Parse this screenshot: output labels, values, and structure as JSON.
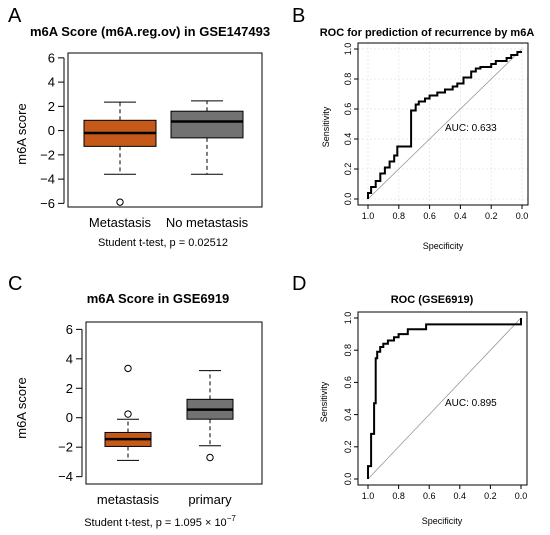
{
  "panels": {
    "A": {
      "letter": "A",
      "title": "m6A Score (m6A.reg.ov) in GSE147493",
      "ylabel": "m6A score",
      "note": "Student t-test, p = 0.02512"
    },
    "B": {
      "letter": "B",
      "title": "ROC for prediction of recurrence by m6A",
      "xlabel": "Specificity",
      "ylabel": "Sensitivity",
      "auc_text": "AUC: 0.633"
    },
    "C": {
      "letter": "C",
      "title": "m6A Score in GSE6919",
      "ylabel": "m6A score",
      "note_prefix": "Student t-test, p = 1.095 × 10",
      "note_exp": "−7"
    },
    "D": {
      "letter": "D",
      "title": "ROC (GSE6919)",
      "xlabel": "Specificity",
      "ylabel": "Sensitivity",
      "auc_text": "AUC: 0.895"
    }
  },
  "chart_data": [
    {
      "type": "box",
      "panel": "A",
      "title": "m6A Score (m6A.reg.ov) in GSE147493",
      "ylabel": "m6A score",
      "ylim": [
        -6.3,
        6.4
      ],
      "yticks": [
        -6,
        -4,
        -2,
        0,
        2,
        4,
        6
      ],
      "categories": [
        "Metastasis",
        "No metastasis"
      ],
      "boxes": [
        {
          "name": "Metastasis",
          "whisker_low": -3.6,
          "q1": -1.3,
          "median": -0.2,
          "q3": 0.85,
          "whisker_high": 2.35,
          "outliers": [
            -5.9
          ],
          "color": "#c4591a"
        },
        {
          "name": "No metastasis",
          "whisker_low": -3.6,
          "q1": -0.6,
          "median": 0.75,
          "q3": 1.6,
          "whisker_high": 2.45,
          "outliers": [],
          "color": "#727272"
        }
      ]
    },
    {
      "type": "line",
      "subtype": "roc",
      "panel": "B",
      "title": "ROC for prediction of recurrence by m6A",
      "xlabel": "Specificity",
      "ylabel": "Sensitivity",
      "xlim": [
        1.0,
        0.0
      ],
      "ylim": [
        0.0,
        1.0
      ],
      "xticks": [
        1.0,
        0.8,
        0.6,
        0.4,
        0.2,
        0.0
      ],
      "yticks": [
        0.0,
        0.2,
        0.4,
        0.6,
        0.8,
        1.0
      ],
      "grid": true,
      "annotation": "AUC: 0.633",
      "x": [
        1.0,
        1.0,
        0.98,
        0.98,
        0.95,
        0.95,
        0.92,
        0.92,
        0.89,
        0.89,
        0.86,
        0.86,
        0.83,
        0.83,
        0.81,
        0.81,
        0.72,
        0.72,
        0.69,
        0.69,
        0.67,
        0.67,
        0.63,
        0.63,
        0.6,
        0.6,
        0.55,
        0.55,
        0.5,
        0.5,
        0.45,
        0.45,
        0.42,
        0.42,
        0.38,
        0.38,
        0.33,
        0.33,
        0.3,
        0.3,
        0.27,
        0.27,
        0.2,
        0.2,
        0.17,
        0.17,
        0.1,
        0.1,
        0.07,
        0.07,
        0.03,
        0.03,
        0.0
      ],
      "y": [
        0.0,
        0.04,
        0.04,
        0.08,
        0.08,
        0.12,
        0.12,
        0.17,
        0.17,
        0.21,
        0.21,
        0.25,
        0.25,
        0.29,
        0.29,
        0.35,
        0.35,
        0.59,
        0.59,
        0.63,
        0.63,
        0.65,
        0.65,
        0.67,
        0.67,
        0.69,
        0.69,
        0.71,
        0.71,
        0.73,
        0.73,
        0.75,
        0.75,
        0.77,
        0.77,
        0.81,
        0.81,
        0.85,
        0.85,
        0.87,
        0.87,
        0.88,
        0.88,
        0.9,
        0.9,
        0.92,
        0.92,
        0.94,
        0.94,
        0.96,
        0.96,
        0.98,
        0.98
      ]
    },
    {
      "type": "box",
      "panel": "C",
      "title": "m6A Score in GSE6919",
      "ylabel": "m6A score",
      "ylim": [
        -4.5,
        6.5
      ],
      "yticks": [
        -4,
        -2,
        0,
        2,
        4,
        6
      ],
      "categories": [
        "metastasis",
        "primary"
      ],
      "boxes": [
        {
          "name": "metastasis",
          "whisker_low": -2.9,
          "q1": -1.95,
          "median": -1.45,
          "q3": -1.0,
          "whisker_high": -0.1,
          "outliers": [
            0.25,
            3.35
          ],
          "color": "#c4591a"
        },
        {
          "name": "primary",
          "whisker_low": -1.9,
          "q1": -0.1,
          "median": 0.55,
          "q3": 1.25,
          "whisker_high": 3.2,
          "outliers": [
            -2.7
          ],
          "color": "#727272"
        }
      ]
    },
    {
      "type": "line",
      "subtype": "roc",
      "panel": "D",
      "title": "ROC (GSE6919)",
      "xlabel": "Specificity",
      "ylabel": "Sensitivity",
      "xlim": [
        1.0,
        0.0
      ],
      "ylim": [
        0.0,
        1.0
      ],
      "xticks": [
        1.0,
        0.8,
        0.6,
        0.4,
        0.2,
        0.0
      ],
      "yticks": [
        0.0,
        0.2,
        0.4,
        0.6,
        0.8,
        1.0
      ],
      "grid": false,
      "annotation": "AUC: 0.895",
      "x": [
        1.0,
        1.0,
        0.98,
        0.98,
        0.96,
        0.96,
        0.95,
        0.95,
        0.94,
        0.94,
        0.92,
        0.92,
        0.9,
        0.9,
        0.87,
        0.87,
        0.83,
        0.83,
        0.8,
        0.8,
        0.74,
        0.74,
        0.62,
        0.62,
        0.0,
        0.0
      ],
      "y": [
        0.0,
        0.08,
        0.08,
        0.28,
        0.28,
        0.47,
        0.47,
        0.75,
        0.75,
        0.79,
        0.79,
        0.82,
        0.82,
        0.84,
        0.84,
        0.86,
        0.86,
        0.88,
        0.88,
        0.9,
        0.9,
        0.93,
        0.93,
        0.96,
        0.96,
        1.0
      ]
    }
  ]
}
